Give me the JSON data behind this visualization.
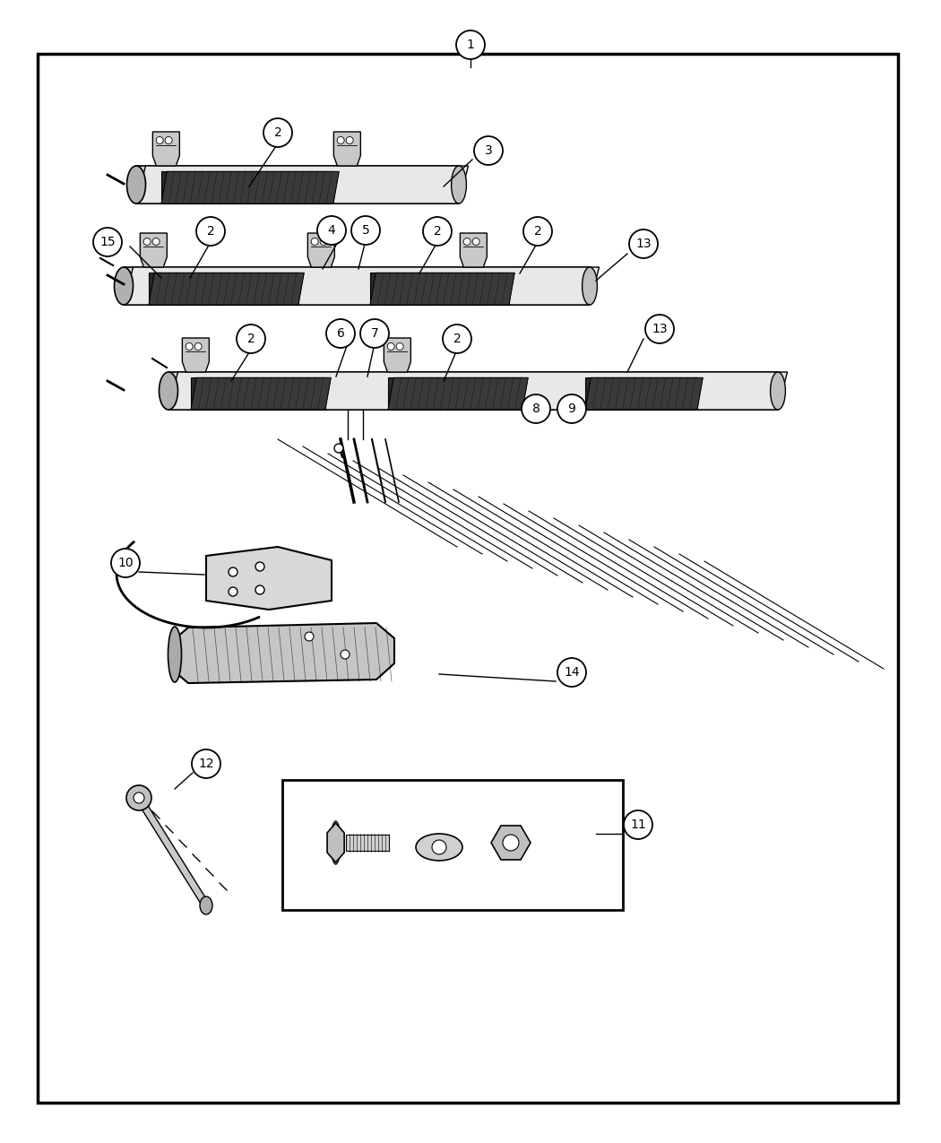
{
  "bg_color": "#ffffff",
  "fig_width": 10.5,
  "fig_height": 12.75,
  "dpi": 100
}
